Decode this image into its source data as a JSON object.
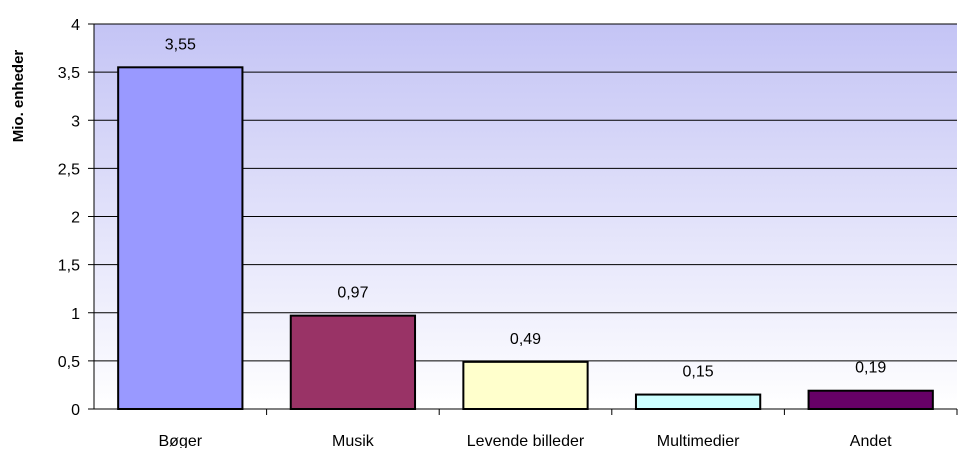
{
  "chart_data": {
    "type": "bar",
    "title": "",
    "xlabel": "",
    "ylabel": "Mio. enheder",
    "ylim": [
      0,
      4
    ],
    "yticks": [
      {
        "value": 0,
        "label": "0"
      },
      {
        "value": 0.5,
        "label": "0,5"
      },
      {
        "value": 1,
        "label": "1"
      },
      {
        "value": 1.5,
        "label": "1,5"
      },
      {
        "value": 2,
        "label": "2"
      },
      {
        "value": 2.5,
        "label": "2,5"
      },
      {
        "value": 3,
        "label": "3"
      },
      {
        "value": 3.5,
        "label": "3,5"
      },
      {
        "value": 4,
        "label": "4"
      }
    ],
    "grid": true,
    "legend": "none",
    "categories": [
      "Bøger",
      "Musik",
      "Levende billeder",
      "Multimedier",
      "Andet"
    ],
    "values": [
      3.55,
      0.97,
      0.49,
      0.15,
      0.19
    ],
    "value_labels": [
      "3,55",
      "0,97",
      "0,49",
      "0,15",
      "0,19"
    ],
    "bar_colors": [
      "#9999FF",
      "#993366",
      "#FFFFCC",
      "#CCFFFF",
      "#660066"
    ],
    "plot_background": {
      "top": "#C4C4F5",
      "bottom": "#FFFFFF"
    }
  }
}
